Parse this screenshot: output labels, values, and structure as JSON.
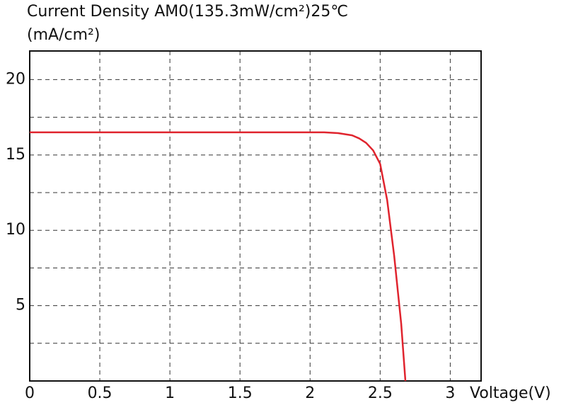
{
  "chart_data": {
    "type": "line",
    "title": "Current Density AM0(135.3mW/cm²)25℃",
    "y_label": "(mA/cm²)",
    "x_label": "Voltage(V)",
    "x": [
      0,
      0.5,
      1,
      1.5,
      2,
      2.1,
      2.2,
      2.3,
      2.35,
      2.4,
      2.45,
      2.5,
      2.55,
      2.6,
      2.65,
      2.68
    ],
    "series": [
      {
        "color": "#e0242e",
        "values": [
          16.5,
          16.5,
          16.5,
          16.5,
          16.5,
          16.5,
          16.45,
          16.3,
          16.1,
          15.8,
          15.3,
          14.4,
          12,
          8.3,
          3.8,
          0
        ]
      }
    ],
    "xlim": [
      0,
      3.22
    ],
    "xticks": [
      0,
      0.5,
      1,
      1.5,
      2,
      2.5,
      3
    ],
    "ylim": [
      0,
      21.9
    ],
    "yticks": [
      5,
      10,
      15,
      20
    ],
    "minor_yticks": [
      2.5,
      7.5,
      12.5,
      17.5
    ],
    "grid": true
  }
}
